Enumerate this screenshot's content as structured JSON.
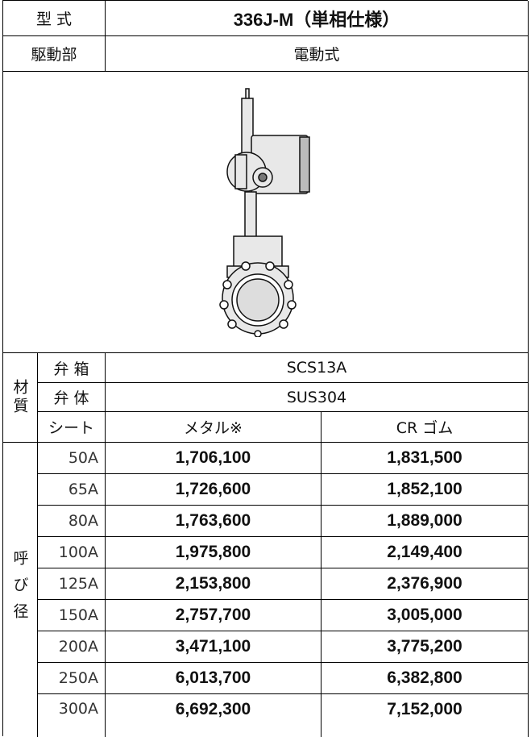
{
  "header": {
    "type_label": "型 式",
    "model": "336J-M（単相仕様）",
    "drive_label": "駆動部",
    "drive_value": "電動式"
  },
  "materials": {
    "label": "材質",
    "rows": [
      [
        "弁 箱",
        "SCS13A"
      ],
      [
        "弁 体",
        "SUS304"
      ]
    ],
    "seat_label": "シート",
    "seats": [
      "メタル※",
      "CR ゴム"
    ]
  },
  "prices": {
    "label": "呼び径",
    "rows": [
      [
        "50A",
        "1,706,100",
        "1,831,500"
      ],
      [
        "65A",
        "1,726,600",
        "1,852,100"
      ],
      [
        "80A",
        "1,763,600",
        "1,889,000"
      ],
      [
        "100A",
        "1,975,800",
        "2,149,400"
      ],
      [
        "125A",
        "2,153,800",
        "2,376,900"
      ],
      [
        "150A",
        "2,757,700",
        "3,005,000"
      ],
      [
        "200A",
        "3,471,100",
        "3,775,200"
      ],
      [
        "250A",
        "6,013,700",
        "6,382,800"
      ],
      [
        "300A",
        "6,692,300",
        "7,152,000"
      ]
    ]
  }
}
